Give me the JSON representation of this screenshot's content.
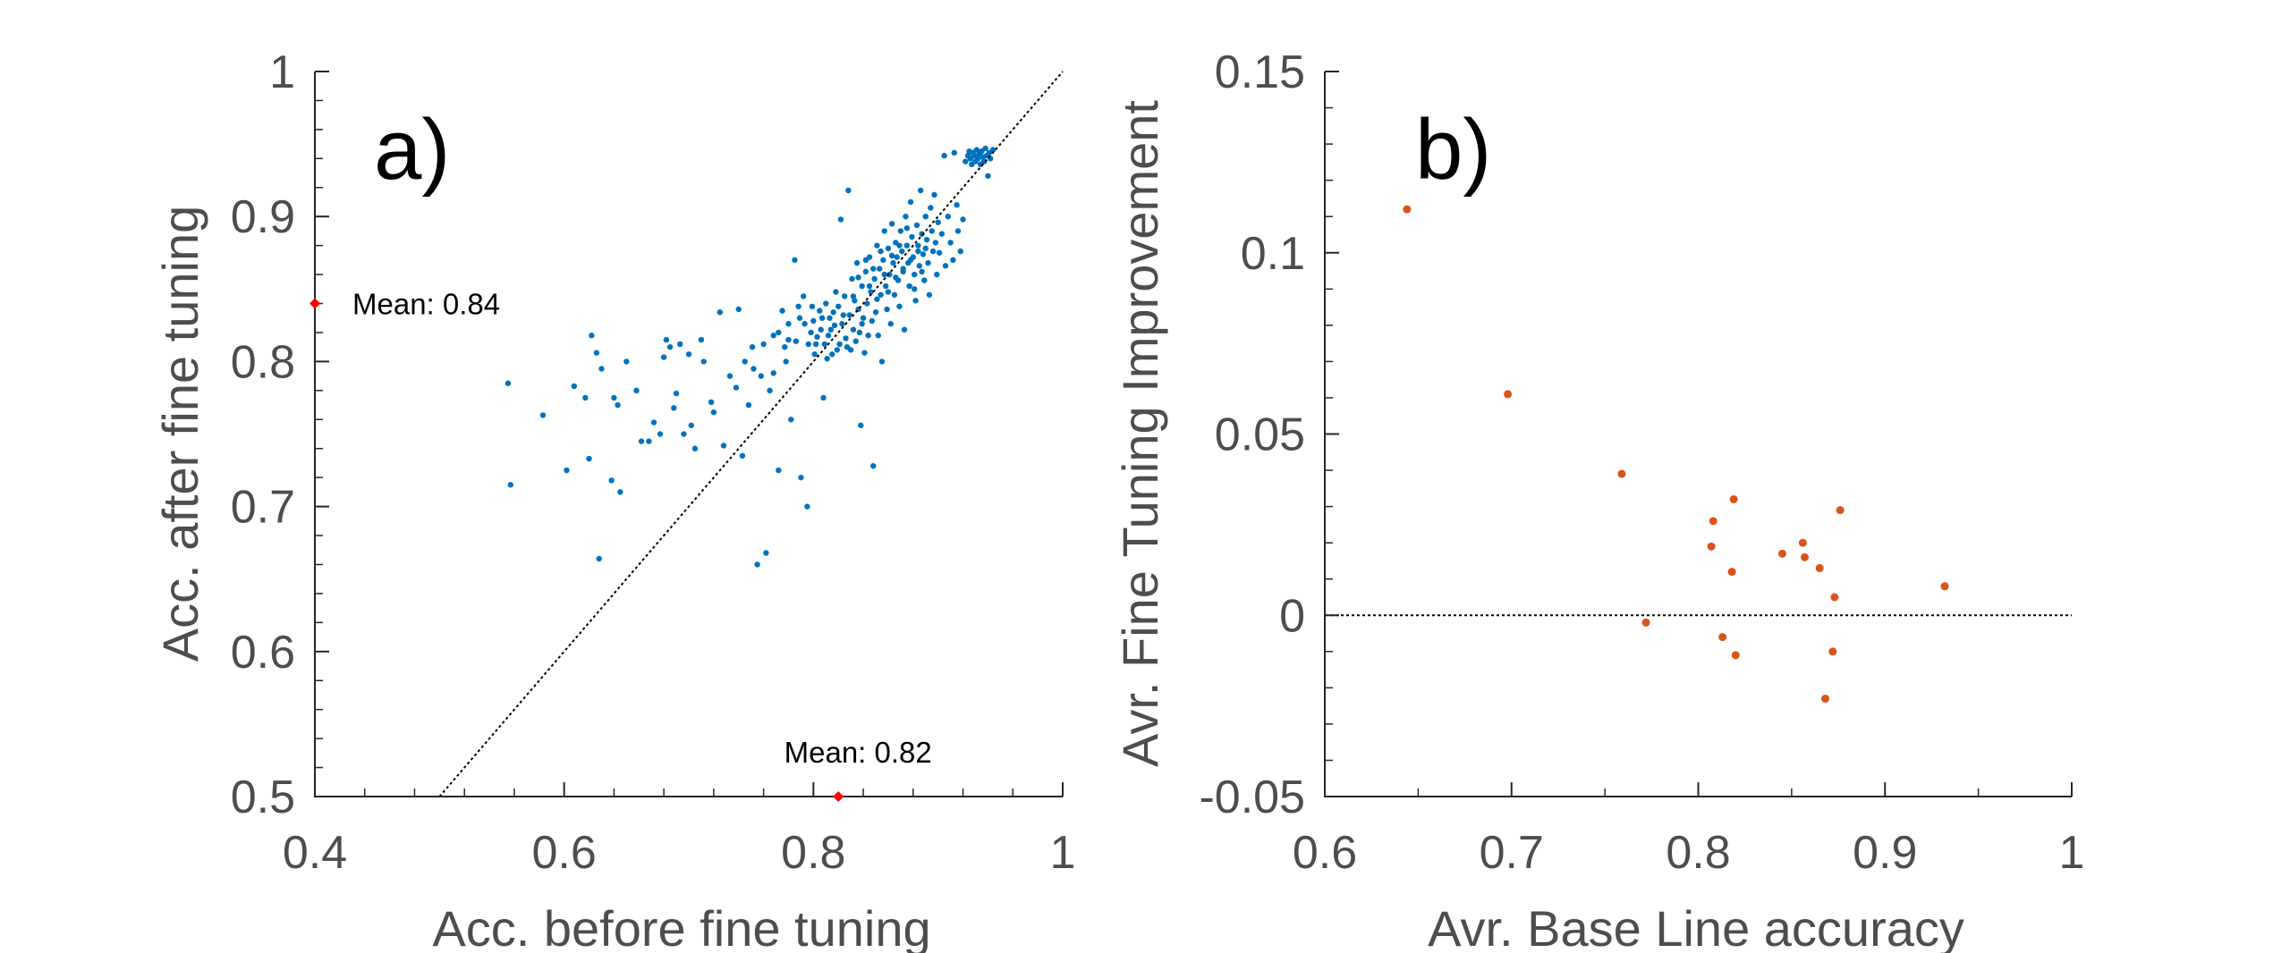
{
  "chart_data": [
    {
      "type": "scatter",
      "panel_label": "a)",
      "xlabel": "Acc. before fine tuning",
      "ylabel": "Acc. after fine tuning",
      "xlim": [
        0.4,
        1.0
      ],
      "ylim": [
        0.5,
        1.0
      ],
      "xticks": [
        0.4,
        0.6,
        0.8,
        1.0
      ],
      "xtick_labels": [
        "0.4",
        "0.6",
        "0.8",
        "1"
      ],
      "yticks": [
        0.5,
        0.6,
        0.7,
        0.8,
        0.9,
        1.0
      ],
      "ytick_labels": [
        "0.5",
        "0.6",
        "0.7",
        "0.8",
        "0.9",
        "1"
      ],
      "point_color": "#0072BD",
      "mean_marker_color": "#FF0000",
      "reference_line": {
        "type": "diagonal",
        "from": [
          0.5,
          0.5
        ],
        "to": [
          1.0,
          1.0
        ]
      },
      "means": [
        {
          "axis": "y",
          "value": 0.84,
          "label": "Mean: 0.84"
        },
        {
          "axis": "x",
          "value": 0.82,
          "label": "Mean: 0.82"
        }
      ],
      "points": [
        [
          0.555,
          0.785
        ],
        [
          0.557,
          0.715
        ],
        [
          0.583,
          0.763
        ],
        [
          0.602,
          0.725
        ],
        [
          0.608,
          0.783
        ],
        [
          0.617,
          0.775
        ],
        [
          0.62,
          0.733
        ],
        [
          0.622,
          0.818
        ],
        [
          0.626,
          0.806
        ],
        [
          0.628,
          0.664
        ],
        [
          0.63,
          0.795
        ],
        [
          0.638,
          0.718
        ],
        [
          0.64,
          0.775
        ],
        [
          0.643,
          0.77
        ],
        [
          0.645,
          0.71
        ],
        [
          0.65,
          0.8
        ],
        [
          0.658,
          0.78
        ],
        [
          0.662,
          0.745
        ],
        [
          0.668,
          0.745
        ],
        [
          0.672,
          0.758
        ],
        [
          0.677,
          0.75
        ],
        [
          0.68,
          0.803
        ],
        [
          0.682,
          0.815
        ],
        [
          0.685,
          0.81
        ],
        [
          0.688,
          0.768
        ],
        [
          0.69,
          0.778
        ],
        [
          0.693,
          0.812
        ],
        [
          0.696,
          0.75
        ],
        [
          0.7,
          0.805
        ],
        [
          0.702,
          0.756
        ],
        [
          0.705,
          0.74
        ],
        [
          0.71,
          0.815
        ],
        [
          0.712,
          0.8
        ],
        [
          0.718,
          0.772
        ],
        [
          0.72,
          0.765
        ],
        [
          0.725,
          0.834
        ],
        [
          0.728,
          0.742
        ],
        [
          0.733,
          0.79
        ],
        [
          0.738,
          0.782
        ],
        [
          0.74,
          0.836
        ],
        [
          0.743,
          0.735
        ],
        [
          0.745,
          0.8
        ],
        [
          0.748,
          0.77
        ],
        [
          0.751,
          0.81
        ],
        [
          0.752,
          0.795
        ],
        [
          0.755,
          0.66
        ],
        [
          0.758,
          0.79
        ],
        [
          0.762,
          0.668
        ],
        [
          0.765,
          0.78
        ],
        [
          0.768,
          0.818
        ],
        [
          0.772,
          0.725
        ],
        [
          0.775,
          0.835
        ],
        [
          0.778,
          0.8
        ],
        [
          0.78,
          0.815
        ],
        [
          0.782,
          0.76
        ],
        [
          0.785,
          0.87
        ],
        [
          0.788,
          0.838
        ],
        [
          0.79,
          0.72
        ],
        [
          0.792,
          0.845
        ],
        [
          0.795,
          0.7
        ],
        [
          0.798,
          0.82
        ],
        [
          0.8,
          0.828
        ],
        [
          0.802,
          0.812
        ],
        [
          0.805,
          0.835
        ],
        [
          0.806,
          0.822
        ],
        [
          0.808,
          0.775
        ],
        [
          0.81,
          0.84
        ],
        [
          0.812,
          0.818
        ],
        [
          0.813,
          0.83
        ],
        [
          0.815,
          0.805
        ],
        [
          0.817,
          0.825
        ],
        [
          0.818,
          0.848
        ],
        [
          0.82,
          0.838
        ],
        [
          0.821,
          0.812
        ],
        [
          0.822,
          0.898
        ],
        [
          0.823,
          0.826
        ],
        [
          0.825,
          0.845
        ],
        [
          0.826,
          0.816
        ],
        [
          0.828,
          0.918
        ],
        [
          0.829,
          0.832
        ],
        [
          0.83,
          0.808
        ],
        [
          0.831,
          0.857
        ],
        [
          0.832,
          0.822
        ],
        [
          0.833,
          0.842
        ],
        [
          0.834,
          0.814
        ],
        [
          0.835,
          0.868
        ],
        [
          0.836,
          0.836
        ],
        [
          0.837,
          0.82
        ],
        [
          0.838,
          0.756
        ],
        [
          0.839,
          0.852
        ],
        [
          0.84,
          0.83
        ],
        [
          0.841,
          0.806
        ],
        [
          0.842,
          0.862
        ],
        [
          0.843,
          0.84
        ],
        [
          0.844,
          0.818
        ],
        [
          0.845,
          0.872
        ],
        [
          0.846,
          0.848
        ],
        [
          0.847,
          0.828
        ],
        [
          0.848,
          0.728
        ],
        [
          0.849,
          0.857
        ],
        [
          0.85,
          0.834
        ],
        [
          0.851,
          0.88
        ],
        [
          0.852,
          0.818
        ],
        [
          0.853,
          0.864
        ],
        [
          0.854,
          0.846
        ],
        [
          0.855,
          0.8
        ],
        [
          0.856,
          0.87
        ],
        [
          0.857,
          0.89
        ],
        [
          0.858,
          0.852
        ],
        [
          0.859,
          0.836
        ],
        [
          0.86,
          0.878
        ],
        [
          0.861,
          0.86
        ],
        [
          0.862,
          0.826
        ],
        [
          0.863,
          0.895
        ],
        [
          0.864,
          0.868
        ],
        [
          0.865,
          0.846
        ],
        [
          0.866,
          0.882
        ],
        [
          0.867,
          0.872
        ],
        [
          0.868,
          0.856
        ],
        [
          0.869,
          0.838
        ],
        [
          0.87,
          0.89
        ],
        [
          0.871,
          0.876
        ],
        [
          0.872,
          0.864
        ],
        [
          0.873,
          0.822
        ],
        [
          0.874,
          0.9
        ],
        [
          0.875,
          0.88
        ],
        [
          0.876,
          0.868
        ],
        [
          0.877,
          0.852
        ],
        [
          0.878,
          0.91
        ],
        [
          0.879,
          0.886
        ],
        [
          0.88,
          0.872
        ],
        [
          0.881,
          0.86
        ],
        [
          0.882,
          0.842
        ],
        [
          0.883,
          0.894
        ],
        [
          0.884,
          0.88
        ],
        [
          0.885,
          0.866
        ],
        [
          0.886,
          0.918
        ],
        [
          0.887,
          0.888
        ],
        [
          0.888,
          0.874
        ],
        [
          0.889,
          0.856
        ],
        [
          0.89,
          0.9
        ],
        [
          0.891,
          0.884
        ],
        [
          0.892,
          0.868
        ],
        [
          0.893,
          0.846
        ],
        [
          0.894,
          0.906
        ],
        [
          0.895,
          0.89
        ],
        [
          0.896,
          0.876
        ],
        [
          0.897,
          0.915
        ],
        [
          0.898,
          0.882
        ],
        [
          0.899,
          0.86
        ],
        [
          0.9,
          0.896
        ],
        [
          0.901,
          0.875
        ],
        [
          0.903,
          0.888
        ],
        [
          0.905,
          0.942
        ],
        [
          0.906,
          0.866
        ],
        [
          0.908,
          0.9
        ],
        [
          0.91,
          0.882
        ],
        [
          0.912,
          0.87
        ],
        [
          0.913,
          0.944
        ],
        [
          0.915,
          0.908
        ],
        [
          0.916,
          0.89
        ],
        [
          0.918,
          0.876
        ],
        [
          0.92,
          0.898
        ],
        [
          0.922,
          0.938
        ],
        [
          0.924,
          0.942
        ],
        [
          0.925,
          0.945
        ],
        [
          0.926,
          0.94
        ],
        [
          0.927,
          0.936
        ],
        [
          0.928,
          0.944
        ],
        [
          0.929,
          0.942
        ],
        [
          0.93,
          0.938
        ],
        [
          0.931,
          0.946
        ],
        [
          0.932,
          0.94
        ],
        [
          0.933,
          0.943
        ],
        [
          0.934,
          0.936
        ],
        [
          0.935,
          0.945
        ],
        [
          0.936,
          0.941
        ],
        [
          0.937,
          0.938
        ],
        [
          0.938,
          0.947
        ],
        [
          0.939,
          0.942
        ],
        [
          0.94,
          0.928
        ],
        [
          0.941,
          0.944
        ],
        [
          0.942,
          0.94
        ],
        [
          0.944,
          0.946
        ],
        [
          0.801,
          0.805
        ],
        [
          0.803,
          0.817
        ],
        [
          0.807,
          0.83
        ],
        [
          0.809,
          0.812
        ],
        [
          0.811,
          0.802
        ],
        [
          0.814,
          0.822
        ],
        [
          0.816,
          0.834
        ],
        [
          0.819,
          0.808
        ],
        [
          0.824,
          0.832
        ],
        [
          0.827,
          0.81
        ],
        [
          0.832,
          0.845
        ],
        [
          0.836,
          0.858
        ],
        [
          0.839,
          0.826
        ],
        [
          0.842,
          0.87
        ],
        [
          0.845,
          0.852
        ],
        [
          0.848,
          0.864
        ],
        [
          0.851,
          0.843
        ],
        [
          0.854,
          0.876
        ],
        [
          0.857,
          0.86
        ],
        [
          0.86,
          0.848
        ],
        [
          0.863,
          0.873
        ],
        [
          0.866,
          0.858
        ],
        [
          0.869,
          0.88
        ],
        [
          0.872,
          0.862
        ],
        [
          0.875,
          0.892
        ],
        [
          0.878,
          0.87
        ],
        [
          0.881,
          0.85
        ],
        [
          0.884,
          0.876
        ],
        [
          0.887,
          0.862
        ],
        [
          0.89,
          0.878
        ],
        [
          0.793,
          0.826
        ],
        [
          0.796,
          0.812
        ],
        [
          0.799,
          0.838
        ],
        [
          0.786,
          0.814
        ],
        [
          0.789,
          0.83
        ],
        [
          0.78,
          0.826
        ],
        [
          0.777,
          0.81
        ],
        [
          0.772,
          0.82
        ],
        [
          0.768,
          0.792
        ],
        [
          0.76,
          0.812
        ]
      ]
    },
    {
      "type": "scatter",
      "panel_label": "b)",
      "xlabel": "Avr. Base Line accuracy",
      "ylabel": "Avr. Fine Tuning Improvement",
      "xlim": [
        0.6,
        1.0
      ],
      "ylim": [
        -0.05,
        0.15
      ],
      "xticks": [
        0.6,
        0.7,
        0.8,
        0.9,
        1.0
      ],
      "xtick_labels": [
        "0.6",
        "0.7",
        "0.8",
        "0.9",
        "1"
      ],
      "yticks": [
        -0.05,
        0.0,
        0.05,
        0.1,
        0.15
      ],
      "ytick_labels": [
        "-0.05",
        "0",
        "0.05",
        "0.1",
        "0.15"
      ],
      "point_color": "#D95319",
      "reference_line": {
        "type": "horizontal",
        "y": 0.0
      },
      "points": [
        [
          0.644,
          0.112
        ],
        [
          0.698,
          0.061
        ],
        [
          0.759,
          0.039
        ],
        [
          0.772,
          -0.002
        ],
        [
          0.807,
          0.019
        ],
        [
          0.808,
          0.026
        ],
        [
          0.813,
          -0.006
        ],
        [
          0.818,
          0.012
        ],
        [
          0.819,
          0.032
        ],
        [
          0.82,
          -0.011
        ],
        [
          0.845,
          0.017
        ],
        [
          0.856,
          0.02
        ],
        [
          0.857,
          0.016
        ],
        [
          0.865,
          0.013
        ],
        [
          0.868,
          -0.023
        ],
        [
          0.872,
          -0.01
        ],
        [
          0.873,
          0.005
        ],
        [
          0.876,
          0.029
        ],
        [
          0.932,
          0.008
        ]
      ]
    }
  ]
}
